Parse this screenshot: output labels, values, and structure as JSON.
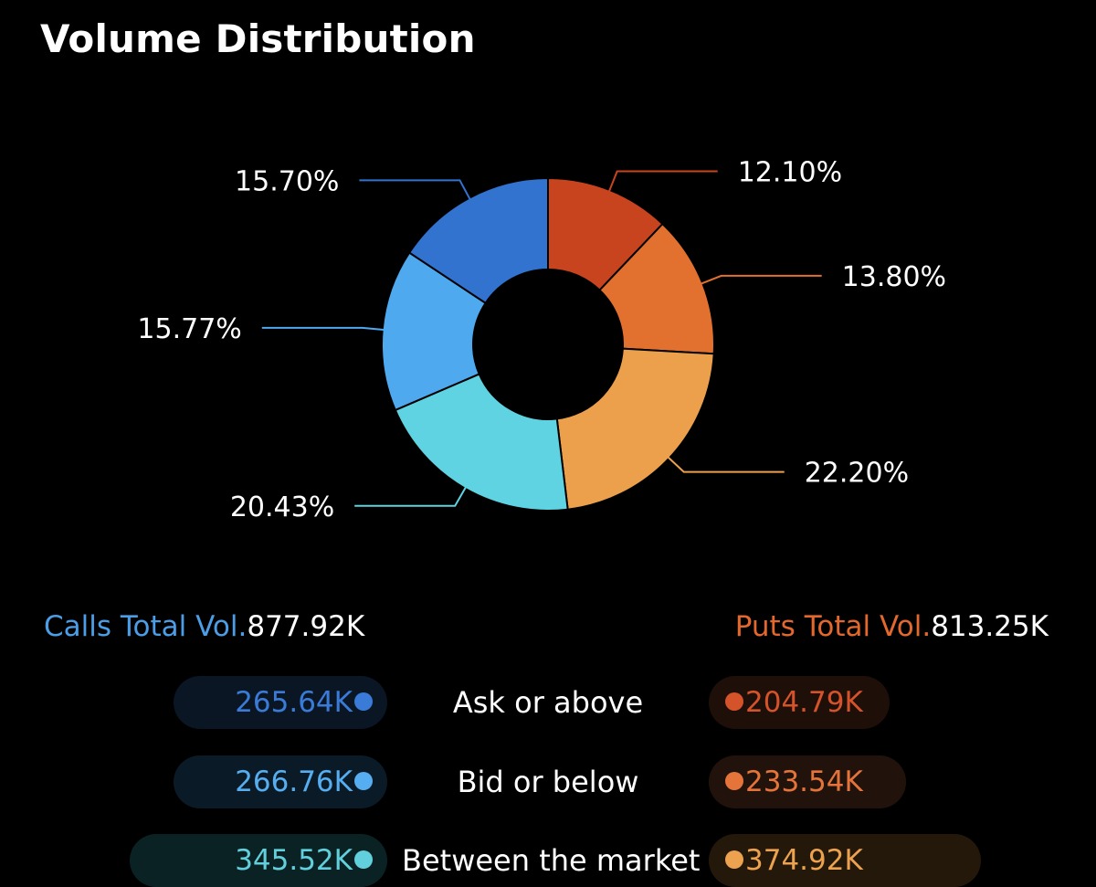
{
  "title": "Volume Distribution",
  "chart_data": {
    "type": "pie",
    "donut": true,
    "title": "Volume Distribution",
    "slices": [
      {
        "label": "12.10%",
        "value": 12.1,
        "color": "#c8441f",
        "group": "Puts - Ask or above"
      },
      {
        "label": "13.80%",
        "value": 13.8,
        "color": "#e2702e",
        "group": "Puts - Bid or below"
      },
      {
        "label": "22.20%",
        "value": 22.2,
        "color": "#eda04c",
        "group": "Puts - Between the market"
      },
      {
        "label": "20.43%",
        "value": 20.43,
        "color": "#5fd3e1",
        "group": "Calls - Between the market"
      },
      {
        "label": "15.77%",
        "value": 15.77,
        "color": "#4ea9ee",
        "group": "Calls - Bid or below"
      },
      {
        "label": "15.70%",
        "value": 15.7,
        "color": "#3173cf",
        "group": "Calls - Ask or above"
      }
    ]
  },
  "calls_total": {
    "label": "Calls Total Vol.",
    "value": "877.92K",
    "color": "#4b9ee6"
  },
  "puts_total": {
    "label": "Puts Total Vol.",
    "value": "813.25K",
    "color": "#e2682d"
  },
  "rows": [
    {
      "label": "Ask or above",
      "calls_value": "265.64K",
      "puts_value": "204.79K",
      "calls_color": "#3a7bd8",
      "puts_color": "#d4532a"
    },
    {
      "label": "Bid or below",
      "calls_value": "266.76K",
      "puts_value": "233.54K",
      "calls_color": "#56aef0",
      "puts_color": "#e5743a"
    },
    {
      "label": "Between the market",
      "calls_value": "345.52K",
      "puts_value": "374.92K",
      "calls_color": "#62d0dc",
      "puts_color": "#eda24f"
    }
  ]
}
